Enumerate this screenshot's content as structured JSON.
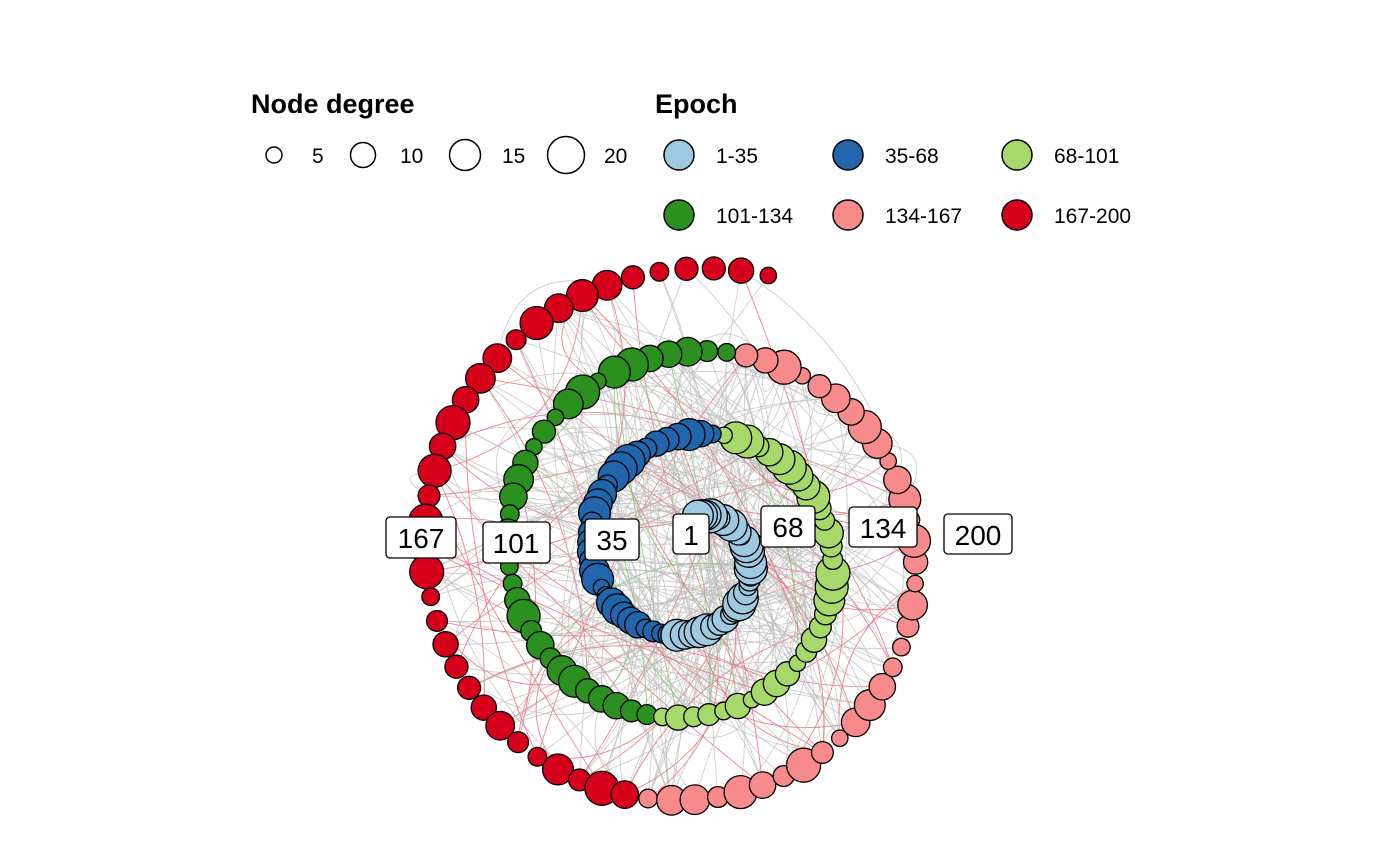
{
  "legend": {
    "degree_title": "Node degree",
    "degree_items": [
      {
        "label": "5",
        "value": 5
      },
      {
        "label": "10",
        "value": 10
      },
      {
        "label": "15",
        "value": 15
      },
      {
        "label": "20",
        "value": 20
      }
    ],
    "epoch_title": "Epoch",
    "epoch_items": [
      {
        "label": "1-35",
        "color": "#9ECAE1"
      },
      {
        "label": "35-68",
        "color": "#2166AC"
      },
      {
        "label": "68-101",
        "color": "#A6D96A"
      },
      {
        "label": "101-134",
        "color": "#2B9020"
      },
      {
        "label": "134-167",
        "color": "#F78A8A"
      },
      {
        "label": "167-200",
        "color": "#D7001C"
      }
    ]
  },
  "node_labels": [
    {
      "text": "1"
    },
    {
      "text": "35"
    },
    {
      "text": "68"
    },
    {
      "text": "101"
    },
    {
      "text": "134"
    },
    {
      "text": "167"
    },
    {
      "text": "200"
    }
  ],
  "colors": {
    "edge_gray": "#BDBDBD",
    "edge_red": "#E8707A",
    "edge_green": "#7FBF6A",
    "node_stroke": "#000000"
  },
  "node_count": 200
}
